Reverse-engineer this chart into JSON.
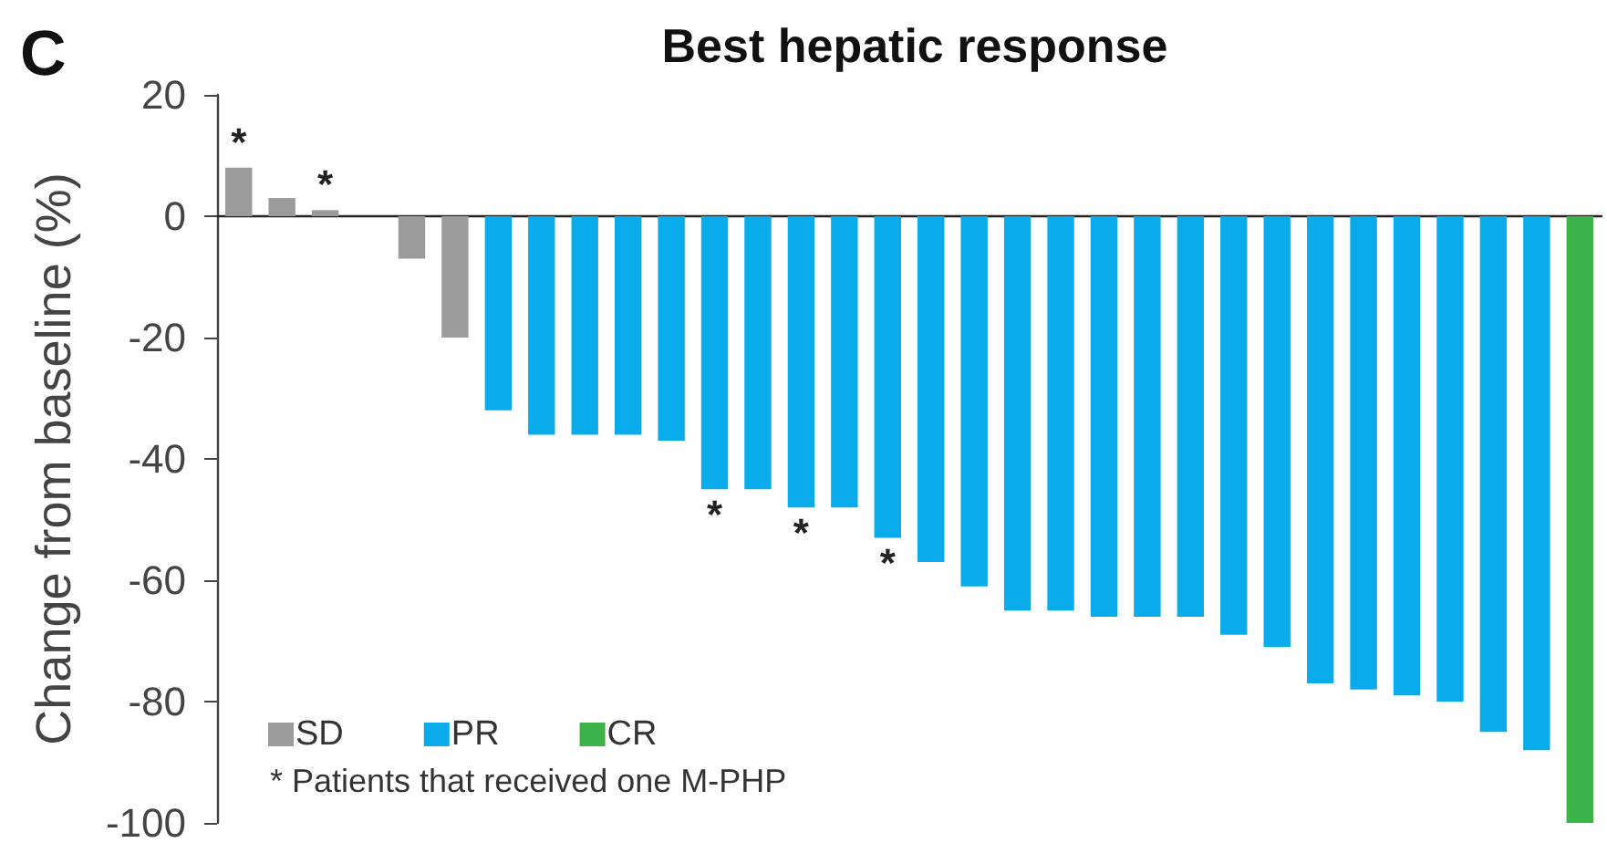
{
  "chart_data": {
    "type": "bar",
    "title": "Best hepatic response",
    "ylabel": "Change from baseline (%)",
    "annotations": [
      "C",
      "* Patients that received one M-PHP"
    ],
    "categories": [
      null,
      null,
      null,
      null,
      null,
      null,
      null,
      null,
      null,
      null,
      null,
      null,
      null,
      null,
      null,
      null,
      null,
      null,
      null,
      null,
      null,
      null,
      null,
      null,
      null,
      null,
      null,
      null,
      null,
      null,
      null,
      null
    ],
    "series": [
      {
        "name": "SD",
        "color": "#9b9b9b",
        "values": [
          8,
          3,
          1,
          null,
          -7,
          -20,
          null,
          null,
          null,
          null,
          null,
          null,
          null,
          null,
          null,
          null,
          null,
          null,
          null,
          null,
          null,
          null,
          null,
          null,
          null,
          null,
          null,
          null,
          null,
          null,
          null,
          null
        ],
        "value_labels": [
          "*",
          null,
          "*",
          null,
          null,
          null,
          null,
          null,
          null,
          null,
          null,
          null,
          null,
          null,
          null,
          null,
          null,
          null,
          null,
          null,
          null,
          null,
          null,
          null,
          null,
          null,
          null,
          null,
          null,
          null,
          null,
          null
        ]
      },
      {
        "name": "PR",
        "color": "#0aabeb",
        "values": [
          null,
          null,
          null,
          null,
          null,
          null,
          -32,
          -36,
          -36,
          -36,
          -37,
          -45,
          -45,
          -48,
          -48,
          -53,
          -57,
          -61,
          -65,
          -65,
          -66,
          -66,
          -66,
          -69,
          -71,
          -77,
          -78,
          -79,
          -80,
          -85,
          -88,
          null
        ],
        "value_labels": [
          null,
          null,
          null,
          null,
          null,
          null,
          null,
          null,
          null,
          null,
          null,
          "*",
          null,
          "*",
          null,
          "*",
          null,
          null,
          null,
          null,
          null,
          null,
          null,
          null,
          null,
          null,
          null,
          null,
          null,
          null,
          null,
          null
        ]
      },
      {
        "name": "CR",
        "color": "#3cb44a",
        "values": [
          null,
          null,
          null,
          null,
          null,
          null,
          null,
          null,
          null,
          null,
          null,
          null,
          null,
          null,
          null,
          null,
          null,
          null,
          null,
          null,
          null,
          null,
          null,
          null,
          null,
          null,
          null,
          null,
          null,
          null,
          null,
          -100
        ]
      }
    ],
    "ylim": [
      -100,
      20
    ],
    "yticks": [
      -100,
      -80,
      -60,
      -40,
      -20,
      0,
      20
    ],
    "legend": "bottom left",
    "tick_labels": "y"
  }
}
